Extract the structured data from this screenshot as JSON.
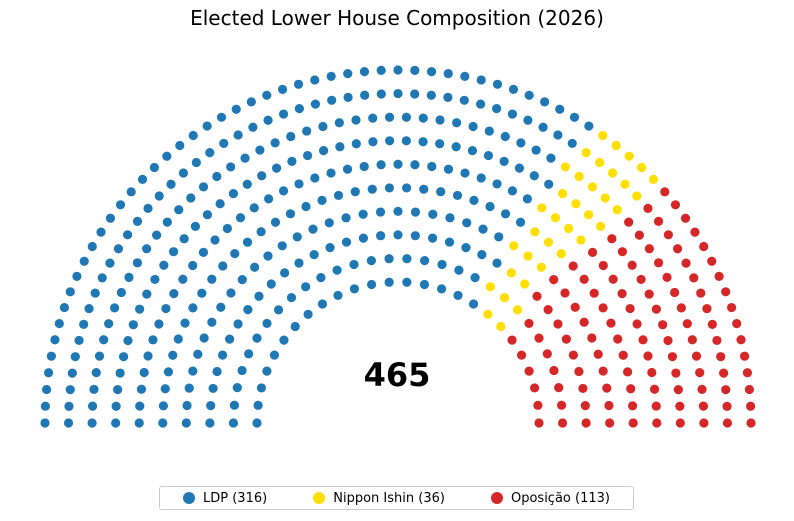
{
  "chart_data": {
    "type": "parliament",
    "title": "Elected Lower House Composition (2026)",
    "total": "465",
    "rows": 10,
    "legend_position": "bottom",
    "series": [
      {
        "name": "LDP",
        "seats": 316,
        "color": "#1f77b4",
        "legend_label": "LDP (316)"
      },
      {
        "name": "Nippon Ishin",
        "seats": 36,
        "color": "#ffdf00",
        "legend_label": "Nippon Ishin (36)"
      },
      {
        "name": "Oposição",
        "seats": 113,
        "color": "#d62728",
        "legend_label": "Oposição (113)"
      }
    ]
  }
}
